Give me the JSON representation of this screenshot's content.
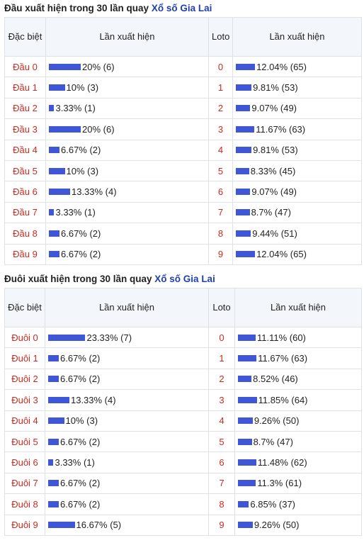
{
  "sections": [
    {
      "title_prefix": "Đầu xuất hiện trong 30 lần quay",
      "title_link": "Xổ số Gia Lai",
      "headers": [
        "Đặc biệt",
        "Lần xuất hiện",
        "Loto",
        "Lần xuất hiện"
      ],
      "rows": [
        {
          "name": "Đầu 0",
          "special": {
            "value": 20,
            "label": "20% (6)"
          },
          "loto": "0",
          "loto_stat": {
            "value": 12.04,
            "label": "12.04% (65)"
          }
        },
        {
          "name": "Đầu 1",
          "special": {
            "value": 10,
            "label": "10% (3)"
          },
          "loto": "1",
          "loto_stat": {
            "value": 9.81,
            "label": "9.81% (53)"
          }
        },
        {
          "name": "Đầu 2",
          "special": {
            "value": 3.33,
            "label": "3.33% (1)"
          },
          "loto": "2",
          "loto_stat": {
            "value": 9.07,
            "label": "9.07% (49)"
          }
        },
        {
          "name": "Đầu 3",
          "special": {
            "value": 20,
            "label": "20% (6)"
          },
          "loto": "3",
          "loto_stat": {
            "value": 11.67,
            "label": "11.67% (63)"
          }
        },
        {
          "name": "Đầu 4",
          "special": {
            "value": 6.67,
            "label": "6.67% (2)"
          },
          "loto": "4",
          "loto_stat": {
            "value": 9.81,
            "label": "9.81% (53)"
          }
        },
        {
          "name": "Đầu 5",
          "special": {
            "value": 10,
            "label": "10% (3)"
          },
          "loto": "5",
          "loto_stat": {
            "value": 8.33,
            "label": "8.33% (45)"
          }
        },
        {
          "name": "Đầu 6",
          "special": {
            "value": 13.33,
            "label": "13.33% (4)"
          },
          "loto": "6",
          "loto_stat": {
            "value": 9.07,
            "label": "9.07% (49)"
          }
        },
        {
          "name": "Đầu 7",
          "special": {
            "value": 3.33,
            "label": "3.33% (1)"
          },
          "loto": "7",
          "loto_stat": {
            "value": 8.7,
            "label": "8.7% (47)"
          }
        },
        {
          "name": "Đầu 8",
          "special": {
            "value": 6.67,
            "label": "6.67% (2)"
          },
          "loto": "8",
          "loto_stat": {
            "value": 9.44,
            "label": "9.44% (51)"
          }
        },
        {
          "name": "Đầu 9",
          "special": {
            "value": 6.67,
            "label": "6.67% (2)"
          },
          "loto": "9",
          "loto_stat": {
            "value": 12.04,
            "label": "12.04% (65)"
          }
        }
      ]
    },
    {
      "title_prefix": "Đuôi xuất hiện trong 30 lần quay",
      "title_link": "Xổ số Gia Lai",
      "headers": [
        "Đặc biệt",
        "Lần xuất hiện",
        "Loto",
        "Lần xuất hiện"
      ],
      "rows": [
        {
          "name": "Đuôi 0",
          "special": {
            "value": 23.33,
            "label": "23.33% (7)"
          },
          "loto": "0",
          "loto_stat": {
            "value": 11.11,
            "label": "11.11% (60)"
          }
        },
        {
          "name": "Đuôi 1",
          "special": {
            "value": 6.67,
            "label": "6.67% (2)"
          },
          "loto": "1",
          "loto_stat": {
            "value": 11.67,
            "label": "11.67% (63)"
          }
        },
        {
          "name": "Đuôi 2",
          "special": {
            "value": 6.67,
            "label": "6.67% (2)"
          },
          "loto": "2",
          "loto_stat": {
            "value": 8.52,
            "label": "8.52% (46)"
          }
        },
        {
          "name": "Đuôi 3",
          "special": {
            "value": 13.33,
            "label": "13.33% (4)"
          },
          "loto": "3",
          "loto_stat": {
            "value": 11.85,
            "label": "11.85% (64)"
          }
        },
        {
          "name": "Đuôi 4",
          "special": {
            "value": 10,
            "label": "10% (3)"
          },
          "loto": "4",
          "loto_stat": {
            "value": 9.26,
            "label": "9.26% (50)"
          }
        },
        {
          "name": "Đuôi 5",
          "special": {
            "value": 6.67,
            "label": "6.67% (2)"
          },
          "loto": "5",
          "loto_stat": {
            "value": 8.7,
            "label": "8.7% (47)"
          }
        },
        {
          "name": "Đuôi 6",
          "special": {
            "value": 3.33,
            "label": "3.33% (1)"
          },
          "loto": "6",
          "loto_stat": {
            "value": 11.48,
            "label": "11.48% (62)"
          }
        },
        {
          "name": "Đuôi 7",
          "special": {
            "value": 6.67,
            "label": "6.67% (2)"
          },
          "loto": "7",
          "loto_stat": {
            "value": 11.3,
            "label": "11.3% (61)"
          }
        },
        {
          "name": "Đuôi 8",
          "special": {
            "value": 6.67,
            "label": "6.67% (2)"
          },
          "loto": "8",
          "loto_stat": {
            "value": 6.85,
            "label": "6.85% (37)"
          }
        },
        {
          "name": "Đuôi 9",
          "special": {
            "value": 16.67,
            "label": "16.67% (5)"
          },
          "loto": "9",
          "loto_stat": {
            "value": 9.26,
            "label": "9.26% (50)"
          }
        }
      ]
    }
  ]
}
